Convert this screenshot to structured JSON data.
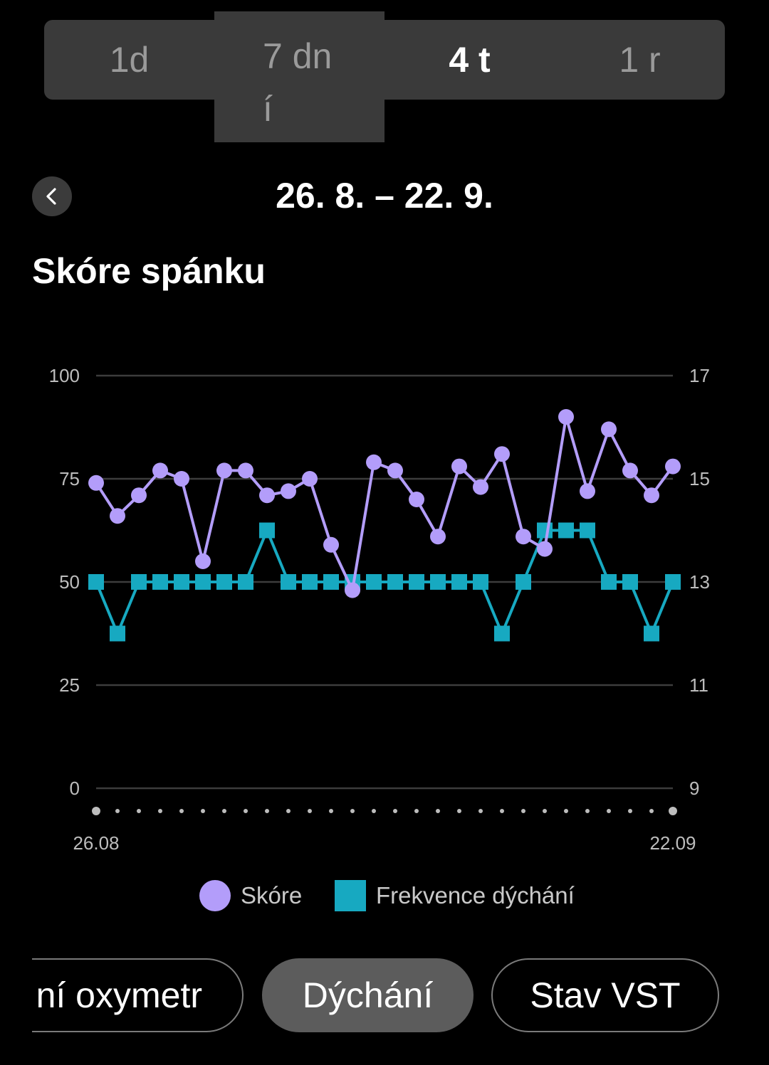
{
  "tabs": {
    "day": "1d",
    "week_line1": "7 dn",
    "week_line2": "í",
    "month": "4 t",
    "year": "1 r",
    "selected": "4 t"
  },
  "header": {
    "back_icon": "chevron-left-icon",
    "date_range": "26. 8. – 22. 9."
  },
  "section_title": "Skóre spánku",
  "legend": {
    "score_label": "Skóre",
    "breath_label": "Frekvence dýchání"
  },
  "bottom_tabs": {
    "oximeter": "ní oxymetr",
    "breathing": "Dýchání",
    "hrv": "Stav VST",
    "selected": "Dýchání"
  },
  "colors": {
    "score": "#b39dfa",
    "breath": "#17a9c1",
    "grid": "#3c3c3c"
  },
  "chart_data": {
    "type": "line",
    "x_start_label": "26.08",
    "x_end_label": "22.09",
    "left_axis": {
      "ticks": [
        0,
        25,
        50,
        75,
        100
      ],
      "range": [
        0,
        100
      ]
    },
    "right_axis": {
      "ticks": [
        9,
        11,
        13,
        15,
        17
      ],
      "range": [
        9,
        17
      ]
    },
    "series": [
      {
        "name": "Skóre",
        "axis": "left",
        "marker": "circle",
        "values": [
          74,
          66,
          71,
          77,
          75,
          55,
          77,
          77,
          71,
          72,
          75,
          59,
          48,
          79,
          77,
          70,
          61,
          78,
          73,
          81,
          61,
          58,
          90,
          72,
          87,
          77,
          71,
          78
        ]
      },
      {
        "name": "Frekvence dýchání",
        "axis": "right",
        "marker": "square",
        "values": [
          13,
          12,
          13,
          13,
          13,
          13,
          13,
          13,
          14,
          13,
          13,
          13,
          13,
          13,
          13,
          13,
          13,
          13,
          13,
          12,
          13,
          14,
          14,
          14,
          13,
          13,
          12,
          13
        ]
      }
    ]
  }
}
